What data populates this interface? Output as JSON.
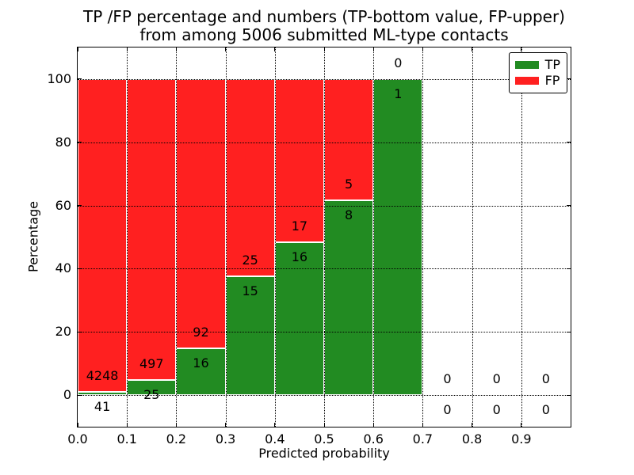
{
  "chart_data": {
    "type": "bar",
    "stacked": true,
    "title": "TP /FP percentage and numbers (TP-bottom value, FP-upper)\nfrom among 5006 submitted ML-type contacts",
    "title_lines": [
      "TP /FP percentage and numbers (TP-bottom value, FP-upper)",
      "from among 5006 submitted ML-type contacts"
    ],
    "xlabel": "Predicted probability",
    "ylabel": "Percentage",
    "xlim": [
      0.0,
      1.0
    ],
    "ylim": [
      -10,
      110
    ],
    "xticks": [
      0.0,
      0.1,
      0.2,
      0.3,
      0.4,
      0.5,
      0.6,
      0.7,
      0.8,
      0.9
    ],
    "xtick_labels": [
      "0.0",
      "0.1",
      "0.2",
      "0.3",
      "0.4",
      "0.5",
      "0.6",
      "0.7",
      "0.8",
      "0.9"
    ],
    "yticks": [
      0,
      20,
      40,
      60,
      80,
      100
    ],
    "ytick_labels": [
      "0",
      "20",
      "40",
      "60",
      "80",
      "100"
    ],
    "grid": "dotted, on top of bars",
    "bin_width": 0.1,
    "bins": [
      {
        "x": 0.0,
        "tp": 41,
        "fp": 4248
      },
      {
        "x": 0.1,
        "tp": 25,
        "fp": 497
      },
      {
        "x": 0.2,
        "tp": 16,
        "fp": 92
      },
      {
        "x": 0.3,
        "tp": 15,
        "fp": 25
      },
      {
        "x": 0.4,
        "tp": 16,
        "fp": 17
      },
      {
        "x": 0.5,
        "tp": 8,
        "fp": 5
      },
      {
        "x": 0.6,
        "tp": 1,
        "fp": 0
      },
      {
        "x": 0.7,
        "tp": 0,
        "fp": 0
      },
      {
        "x": 0.8,
        "tp": 0,
        "fp": 0
      },
      {
        "x": 0.9,
        "tp": 0,
        "fp": 0
      }
    ],
    "legend": {
      "position": "upper right",
      "entries": [
        {
          "label": "TP",
          "color": "#228b22"
        },
        {
          "label": "FP",
          "color": "#ff2020"
        }
      ]
    },
    "colors": {
      "tp": "#228b22",
      "fp": "#ff2020",
      "text": "#000000",
      "background": "#ffffff"
    }
  }
}
